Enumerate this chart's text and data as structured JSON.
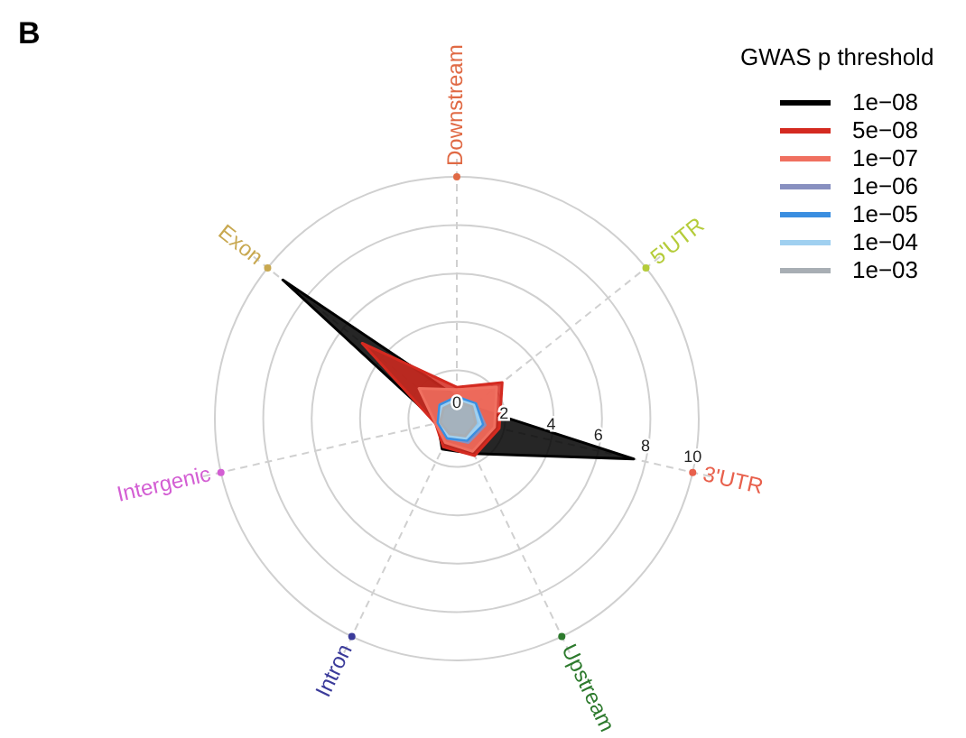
{
  "chart_data": {
    "type": "radar",
    "legend_title": "GWAS p threshold",
    "annotations": [
      "B"
    ],
    "categories": [
      "Downstream",
      "5'UTR",
      "3'UTR",
      "Upstream",
      "Intron",
      "Intergenic",
      "Exon"
    ],
    "colors": [
      "#e06a45",
      "#b5cc3a",
      "#e8604c",
      "#2d7a2d",
      "#3b3b9a",
      "#d35ed3",
      "#c8a850"
    ],
    "ylim": [
      0,
      10
    ],
    "yticks": [
      0,
      2,
      4,
      6,
      8,
      10
    ],
    "grid": true,
    "legend": "top right",
    "series": [
      {
        "name": "1e−08",
        "color": "#000000",
        "values": [
          0.9,
          0.8,
          7.5,
          1.6,
          1.4,
          0.8,
          9.2
        ]
      },
      {
        "name": "5e−08",
        "color": "#d42a20",
        "values": [
          1.3,
          2.4,
          1.8,
          1.7,
          1.3,
          0.9,
          5.0
        ]
      },
      {
        "name": "1e−07",
        "color": "#f07060",
        "values": [
          1.2,
          2.1,
          1.6,
          1.5,
          1.1,
          0.9,
          2.0
        ]
      },
      {
        "name": "1e−06",
        "color": "#8890c0",
        "values": [
          0.9,
          1.0,
          1.2,
          1.1,
          0.9,
          0.8,
          0.9
        ]
      },
      {
        "name": "1e−05",
        "color": "#3a8ee0",
        "values": [
          0.9,
          1.0,
          1.1,
          1.0,
          0.9,
          0.8,
          0.9
        ]
      },
      {
        "name": "1e−04",
        "color": "#a0d0f0",
        "values": [
          0.8,
          0.9,
          1.0,
          0.9,
          0.8,
          0.7,
          0.8
        ]
      },
      {
        "name": "1e−03",
        "color": "#a8aeb4",
        "values": [
          0.7,
          0.8,
          0.8,
          0.8,
          0.7,
          0.7,
          0.7
        ]
      }
    ]
  }
}
